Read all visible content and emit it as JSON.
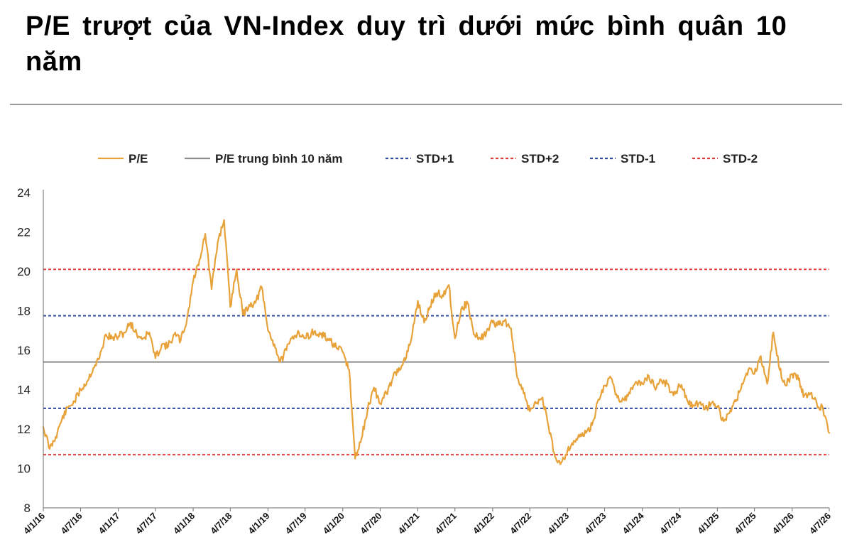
{
  "title": "P/E trượt của VN-Index duy trì dưới mức bình quân 10 năm",
  "colors": {
    "pe": "#E8A23A",
    "avg": "#8c8c8c",
    "std1": "#2F4A9E",
    "std2": "#E03A3A",
    "axis": "#6d6d6d"
  },
  "chart_data": {
    "type": "line",
    "title": "P/E trượt của VN-Index duy trì dưới mức bình quân 10 năm",
    "xlabel": "",
    "ylabel": "",
    "ylim": [
      8,
      24
    ],
    "yticks": [
      8,
      10,
      12,
      14,
      16,
      18,
      20,
      22,
      24
    ],
    "x_ticks": [
      "4/1/16",
      "4/7/16",
      "4/1/17",
      "4/7/17",
      "4/1/18",
      "4/7/18",
      "4/1/19",
      "4/7/19",
      "4/1/20",
      "4/7/20",
      "4/1/21",
      "4/7/21",
      "4/1/22",
      "4/7/22",
      "4/1/23",
      "4/7/23",
      "4/1/24",
      "4/7/24",
      "4/1/25",
      "4/7/25",
      "4/1/26",
      "4/7/26"
    ],
    "x_start": "4/1/16",
    "x_end": "4/7/26",
    "legend_position": "top",
    "grid": false,
    "series": [
      {
        "name": "P/E",
        "style": "solid",
        "points": [
          [
            "4/1/16",
            12.1
          ],
          [
            "4/2/16",
            11.0
          ],
          [
            "4/3/16",
            11.6
          ],
          [
            "4/4/16",
            12.5
          ],
          [
            "4/5/16",
            13.1
          ],
          [
            "4/6/16",
            13.4
          ],
          [
            "4/7/16",
            14.0
          ],
          [
            "4/8/16",
            14.4
          ],
          [
            "4/9/16",
            15.1
          ],
          [
            "4/10/16",
            15.6
          ],
          [
            "4/11/16",
            16.8
          ],
          [
            "4/12/16",
            16.6
          ],
          [
            "4/1/17",
            16.7
          ],
          [
            "4/2/17",
            16.9
          ],
          [
            "4/3/17",
            17.4
          ],
          [
            "4/4/17",
            16.8
          ],
          [
            "4/5/17",
            16.6
          ],
          [
            "4/6/17",
            16.9
          ],
          [
            "4/7/17",
            15.6
          ],
          [
            "4/8/17",
            16.3
          ],
          [
            "4/9/17",
            16.2
          ],
          [
            "4/10/17",
            16.8
          ],
          [
            "4/11/17",
            16.5
          ],
          [
            "4/12/17",
            17.5
          ],
          [
            "4/1/18",
            19.5
          ],
          [
            "4/2/18",
            20.6
          ],
          [
            "4/3/18",
            21.9
          ],
          [
            "4/4/18",
            19.1
          ],
          [
            "4/5/18",
            21.5
          ],
          [
            "4/6/18",
            22.6
          ],
          [
            "4/7/18",
            18.2
          ],
          [
            "4/8/18",
            20.1
          ],
          [
            "4/9/18",
            17.8
          ],
          [
            "4/10/18",
            18.3
          ],
          [
            "4/11/18",
            18.4
          ],
          [
            "4/12/18",
            19.2
          ],
          [
            "4/1/19",
            17.0
          ],
          [
            "4/2/19",
            16.3
          ],
          [
            "4/3/19",
            15.4
          ],
          [
            "4/4/19",
            16.0
          ],
          [
            "4/5/19",
            16.7
          ],
          [
            "4/6/19",
            16.9
          ],
          [
            "4/7/19",
            16.6
          ],
          [
            "4/8/19",
            16.9
          ],
          [
            "4/9/19",
            16.8
          ],
          [
            "4/10/19",
            16.7
          ],
          [
            "4/11/19",
            16.5
          ],
          [
            "4/12/19",
            16.1
          ],
          [
            "4/1/20",
            15.9
          ],
          [
            "4/2/20",
            15.0
          ],
          [
            "4/3/20",
            10.5
          ],
          [
            "4/4/20",
            11.5
          ],
          [
            "4/5/20",
            13.0
          ],
          [
            "4/6/20",
            14.1
          ],
          [
            "4/7/20",
            13.3
          ],
          [
            "4/8/20",
            13.8
          ],
          [
            "4/9/20",
            14.6
          ],
          [
            "4/10/20",
            15.1
          ],
          [
            "4/11/20",
            15.5
          ],
          [
            "4/12/20",
            16.6
          ],
          [
            "4/1/21",
            18.5
          ],
          [
            "4/2/21",
            17.4
          ],
          [
            "4/3/21",
            18.2
          ],
          [
            "4/4/21",
            18.9
          ],
          [
            "4/5/21",
            18.8
          ],
          [
            "4/6/21",
            19.3
          ],
          [
            "4/7/21",
            16.6
          ],
          [
            "4/8/21",
            18.1
          ],
          [
            "4/9/21",
            18.4
          ],
          [
            "4/10/21",
            16.8
          ],
          [
            "4/11/21",
            16.6
          ],
          [
            "4/12/21",
            16.9
          ],
          [
            "4/1/22",
            17.4
          ],
          [
            "4/2/22",
            17.3
          ],
          [
            "4/3/22",
            17.5
          ],
          [
            "4/4/22",
            17.1
          ],
          [
            "4/5/22",
            14.6
          ],
          [
            "4/6/22",
            13.8
          ],
          [
            "4/7/22",
            12.9
          ],
          [
            "4/8/22",
            13.3
          ],
          [
            "4/9/22",
            13.6
          ],
          [
            "4/10/22",
            12.1
          ],
          [
            "4/11/22",
            10.6
          ],
          [
            "4/12/22",
            10.3
          ],
          [
            "4/1/23",
            10.9
          ],
          [
            "4/2/23",
            11.4
          ],
          [
            "4/3/23",
            11.6
          ],
          [
            "4/4/23",
            11.8
          ],
          [
            "4/5/23",
            12.2
          ],
          [
            "4/6/23",
            13.5
          ],
          [
            "4/7/23",
            14.2
          ],
          [
            "4/8/23",
            14.6
          ],
          [
            "4/9/23",
            13.6
          ],
          [
            "4/10/23",
            13.5
          ],
          [
            "4/11/23",
            13.8
          ],
          [
            "4/12/23",
            14.4
          ],
          [
            "4/1/24",
            14.3
          ],
          [
            "4/2/24",
            14.7
          ],
          [
            "4/3/24",
            14.1
          ],
          [
            "4/4/24",
            14.5
          ],
          [
            "4/5/24",
            14.3
          ],
          [
            "4/6/24",
            13.7
          ],
          [
            "4/7/24",
            14.2
          ],
          [
            "4/8/24",
            13.7
          ],
          [
            "4/9/24",
            13.1
          ],
          [
            "4/10/24",
            13.3
          ],
          [
            "4/11/24",
            13.0
          ],
          [
            "4/12/24",
            13.3
          ],
          [
            "4/1/25",
            13.1
          ],
          [
            "4/2/25",
            12.4
          ],
          [
            "4/3/25",
            12.8
          ],
          [
            "4/4/25",
            13.4
          ],
          [
            "4/5/25",
            14.3
          ],
          [
            "4/6/25",
            15.0
          ],
          [
            "4/7/25",
            14.8
          ],
          [
            "4/8/25",
            15.7
          ],
          [
            "4/9/25",
            14.3
          ],
          [
            "4/10/25",
            16.9
          ],
          [
            "4/11/25",
            15.0
          ],
          [
            "4/12/25",
            14.2
          ],
          [
            "4/1/26",
            14.8
          ],
          [
            "4/2/26",
            14.5
          ],
          [
            "4/3/26",
            13.7
          ],
          [
            "4/4/26",
            13.8
          ],
          [
            "4/5/26",
            13.3
          ],
          [
            "4/6/26",
            13.0
          ],
          [
            "4/7/26",
            11.8
          ]
        ]
      },
      {
        "name": "P/E trung bình 10 năm",
        "style": "solid",
        "value": 15.4
      },
      {
        "name": "STD+1",
        "style": "dashed",
        "value": 17.75
      },
      {
        "name": "STD+2",
        "style": "dashed",
        "value": 20.1
      },
      {
        "name": "STD-1",
        "style": "dashed",
        "value": 13.05
      },
      {
        "name": "STD-2",
        "style": "dashed",
        "value": 10.7
      }
    ]
  }
}
